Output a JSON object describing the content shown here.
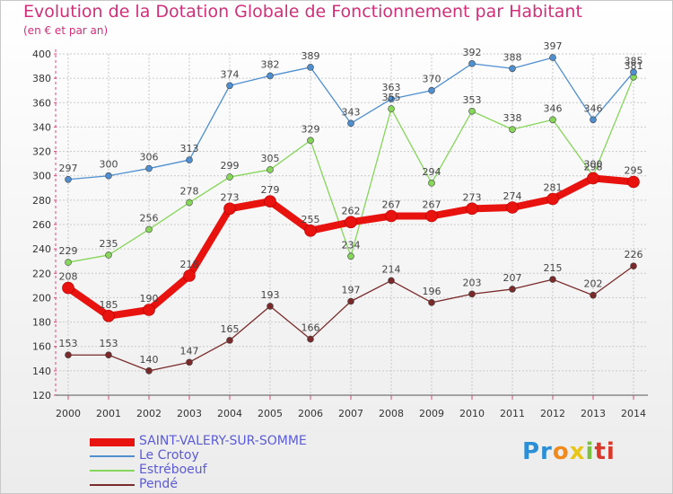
{
  "chart_data": {
    "type": "line",
    "title": "Evolution de la Dotation Globale de Fonctionnement par Habitant",
    "subtitle": "(en € et par an)",
    "xlabel": "",
    "ylabel": "",
    "categories": [
      "2000",
      "2001",
      "2002",
      "2003",
      "2004",
      "2005",
      "2006",
      "2007",
      "2008",
      "2009",
      "2010",
      "2011",
      "2012",
      "2013",
      "2014"
    ],
    "ylim": [
      120,
      400
    ],
    "yticks": [
      120,
      140,
      160,
      180,
      200,
      220,
      240,
      260,
      280,
      300,
      320,
      340,
      360,
      380,
      400
    ],
    "grid": true,
    "legend_position": "bottom-left",
    "series": [
      {
        "name": "SAINT-VALERY-SUR-SOMME",
        "color": "#e8120e",
        "values": [
          208,
          185,
          190,
          218,
          273,
          279,
          255,
          262,
          267,
          267,
          273,
          274,
          281,
          298,
          295
        ]
      },
      {
        "name": "Le Crotoy",
        "color": "#4f8fd0",
        "values": [
          297,
          300,
          306,
          313,
          374,
          382,
          389,
          343,
          363,
          370,
          392,
          388,
          397,
          346,
          385
        ]
      },
      {
        "name": "Estréboeuf",
        "color": "#86d65a",
        "values": [
          229,
          235,
          256,
          278,
          299,
          305,
          329,
          234,
          355,
          294,
          353,
          338,
          346,
          300,
          381
        ]
      },
      {
        "name": "Pendé",
        "color": "#7a2a2a",
        "values": [
          153,
          153,
          140,
          147,
          165,
          193,
          166,
          197,
          214,
          196,
          203,
          207,
          215,
          202,
          226
        ]
      }
    ]
  },
  "logo": {
    "parts": [
      "Pr",
      "o",
      "x",
      "i",
      "ti"
    ],
    "text": "Proxiti"
  }
}
